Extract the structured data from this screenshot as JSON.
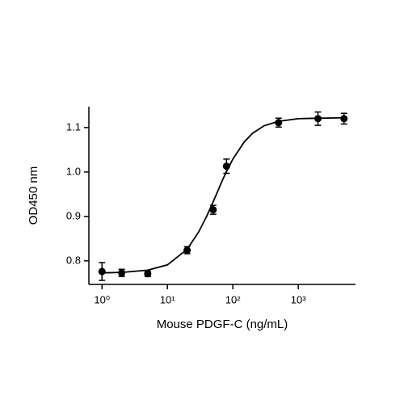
{
  "chart_data": {
    "type": "scatter",
    "xlabel": "Mouse PDGF-C (ng/mL)",
    "ylabel": "OD450 nm",
    "xscale": "log",
    "xlim": [
      0.63,
      7500
    ],
    "ylim": [
      0.747,
      1.147
    ],
    "xticks": [
      {
        "value": 1,
        "label": "10⁰"
      },
      {
        "value": 10,
        "label": "10¹"
      },
      {
        "value": 100,
        "label": "10²"
      },
      {
        "value": 1000,
        "label": "10³"
      }
    ],
    "yticks": [
      0.8,
      0.9,
      {
        "value": 1,
        "label": "1.0"
      },
      1.1
    ],
    "series": [
      {
        "type": "scatter",
        "color": "#000000",
        "x": [
          1,
          2,
          5,
          20,
          50,
          80,
          500,
          2000,
          5000
        ],
        "values": [
          0.776,
          0.773,
          0.771,
          0.824,
          0.915,
          1.013,
          1.111,
          1.12,
          1.12
        ],
        "errors": [
          0.02,
          0.008,
          0.006,
          0.008,
          0.01,
          0.016,
          0.01,
          0.015,
          0.012
        ]
      },
      {
        "type": "line",
        "color": "#000000",
        "x": [
          1,
          2,
          5,
          10,
          20,
          30,
          40,
          50,
          60,
          70,
          80,
          100,
          150,
          200,
          300,
          500,
          1000,
          2000,
          5000
        ],
        "values": [
          0.773,
          0.774,
          0.779,
          0.791,
          0.826,
          0.865,
          0.901,
          0.933,
          0.96,
          0.983,
          1.001,
          1.029,
          1.068,
          1.087,
          1.104,
          1.114,
          1.12,
          1.121,
          1.122
        ]
      }
    ]
  }
}
